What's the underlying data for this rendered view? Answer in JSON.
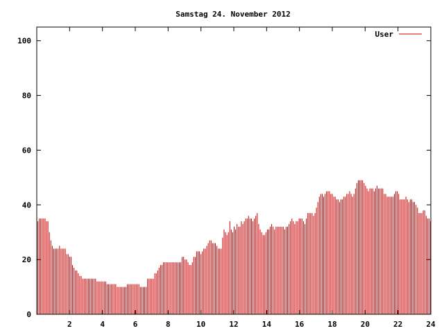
{
  "chart_data": {
    "type": "bar",
    "title": "Samstag 24. November 2012",
    "xlabel": "",
    "ylabel": "",
    "xlim": [
      0,
      24
    ],
    "ylim": [
      0,
      105
    ],
    "xticks": [
      2,
      4,
      6,
      8,
      10,
      12,
      14,
      16,
      18,
      20,
      22,
      24
    ],
    "yticks": [
      0,
      20,
      40,
      60,
      80,
      100
    ],
    "grid": false,
    "legend": {
      "position": "top-right",
      "entries": [
        "User"
      ]
    },
    "series": [
      {
        "name": "User",
        "color": "#cc0000",
        "sample_interval_hours": 0.0833,
        "values": [
          34,
          35,
          35,
          35,
          35,
          35,
          34,
          34,
          30,
          27,
          25,
          24,
          24,
          24,
          24,
          25,
          24,
          24,
          24,
          24,
          22,
          22,
          21,
          21,
          18,
          17,
          16,
          16,
          15,
          14,
          14,
          13,
          13,
          13,
          13,
          13,
          13,
          13,
          13,
          13,
          13,
          12,
          12,
          12,
          12,
          12,
          12,
          12,
          11,
          11,
          11,
          11,
          11,
          11,
          11,
          10,
          10,
          10,
          10,
          10,
          10,
          10,
          11,
          11,
          11,
          11,
          11,
          11,
          11,
          11,
          11,
          10,
          10,
          10,
          10,
          10,
          13,
          13,
          13,
          13,
          13,
          15,
          15,
          16,
          17,
          18,
          18,
          19,
          19,
          19,
          19,
          19,
          19,
          19,
          19,
          19,
          19,
          19,
          19,
          19,
          21,
          21,
          20,
          20,
          19,
          18,
          18,
          19,
          21,
          21,
          23,
          23,
          23,
          22,
          23,
          24,
          24,
          25,
          26,
          27,
          27,
          26,
          26,
          26,
          25,
          24,
          24,
          24,
          28,
          31,
          30,
          29,
          30,
          34,
          31,
          30,
          32,
          31,
          33,
          32,
          32,
          34,
          33,
          34,
          35,
          35,
          36,
          35,
          35,
          34,
          35,
          36,
          37,
          33,
          31,
          30,
          29,
          29,
          30,
          31,
          31,
          32,
          33,
          32,
          31,
          32,
          32,
          32,
          32,
          32,
          32,
          31,
          32,
          32,
          33,
          34,
          35,
          34,
          33,
          34,
          34,
          35,
          35,
          35,
          34,
          33,
          35,
          37,
          37,
          37,
          37,
          36,
          37,
          39,
          41,
          43,
          44,
          44,
          43,
          44,
          45,
          45,
          45,
          44,
          44,
          43,
          43,
          42,
          42,
          41,
          42,
          42,
          43,
          43,
          44,
          44,
          45,
          44,
          43,
          44,
          46,
          48,
          49,
          49,
          49,
          49,
          48,
          47,
          46,
          45,
          46,
          46,
          46,
          45,
          46,
          47,
          46,
          46,
          46,
          46,
          44,
          44,
          43,
          43,
          43,
          43,
          43,
          44,
          45,
          45,
          44,
          42,
          42,
          42,
          42,
          43,
          42,
          41,
          42,
          42,
          41,
          41,
          40,
          39,
          37,
          37,
          37,
          38,
          38,
          36,
          35,
          35,
          34
        ]
      }
    ]
  }
}
